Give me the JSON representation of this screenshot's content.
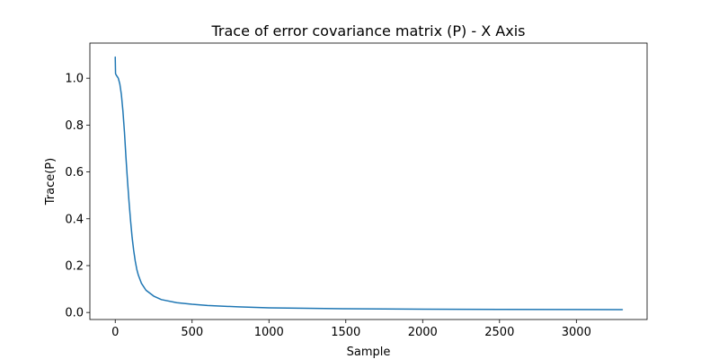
{
  "chart_data": {
    "type": "line",
    "title": "Trace of error covariance matrix (P) - X Axis",
    "xlabel": "Sample",
    "ylabel": "Trace(P)",
    "xlim": [
      -165,
      3460
    ],
    "ylim": [
      -0.03,
      1.15
    ],
    "xticks": [
      0,
      500,
      1000,
      1500,
      2000,
      2500,
      3000
    ],
    "xtick_labels": [
      "0",
      "500",
      "1000",
      "1500",
      "2000",
      "2500",
      "3000"
    ],
    "yticks": [
      0.0,
      0.2,
      0.4,
      0.6,
      0.8,
      1.0
    ],
    "ytick_labels": [
      "0.0",
      "0.2",
      "0.4",
      "0.6",
      "0.8",
      "1.0"
    ],
    "grid": false,
    "series": [
      {
        "color": "#1f77b4",
        "x": [
          0,
          2,
          5,
          10,
          20,
          30,
          40,
          50,
          60,
          70,
          80,
          90,
          100,
          110,
          120,
          130,
          140,
          150,
          170,
          200,
          250,
          300,
          400,
          500,
          600,
          800,
          1000,
          1500,
          2000,
          2500,
          3000,
          3299
        ],
        "y": [
          1.09,
          1.02,
          1.015,
          1.01,
          1.0,
          0.975,
          0.93,
          0.86,
          0.77,
          0.66,
          0.56,
          0.47,
          0.39,
          0.32,
          0.265,
          0.22,
          0.185,
          0.16,
          0.125,
          0.095,
          0.07,
          0.055,
          0.042,
          0.035,
          0.03,
          0.024,
          0.02,
          0.016,
          0.014,
          0.013,
          0.0125,
          0.012
        ]
      }
    ]
  }
}
